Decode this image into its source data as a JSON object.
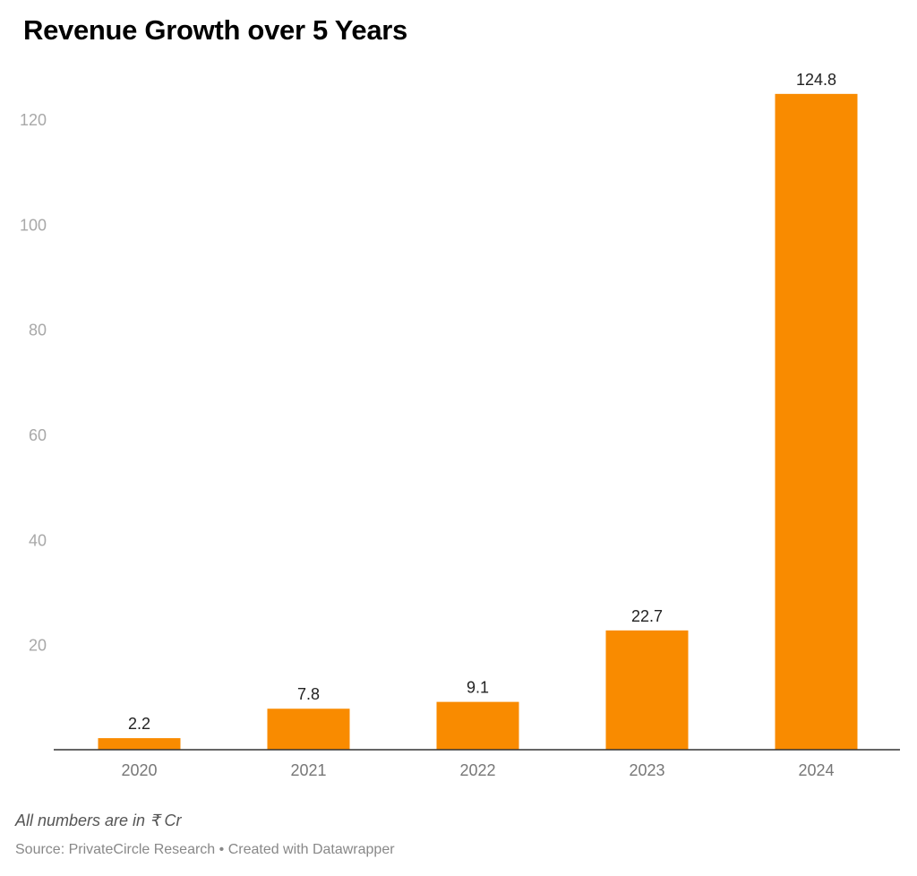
{
  "chart_data": {
    "type": "bar",
    "title": "Revenue Growth over 5 Years",
    "categories": [
      "2020",
      "2021",
      "2022",
      "2023",
      "2024"
    ],
    "values": [
      2.2,
      7.8,
      9.1,
      22.7,
      124.8
    ],
    "data_labels": [
      "2.2",
      "7.8",
      "9.1",
      "22.7",
      "124.8"
    ],
    "xlabel": "",
    "ylabel": "",
    "ylim": [
      0,
      130
    ],
    "yticks": [
      20,
      40,
      60,
      80,
      100,
      120
    ],
    "ytick_labels": [
      "20",
      "40",
      "60",
      "80",
      "100",
      "120"
    ],
    "grid": false,
    "legend": "none",
    "bar_color": "#f98b00"
  },
  "notes": {
    "unit_note": "All numbers are in ₹ Cr",
    "source": "Source: PrivateCircle Research • Created with Datawrapper"
  }
}
